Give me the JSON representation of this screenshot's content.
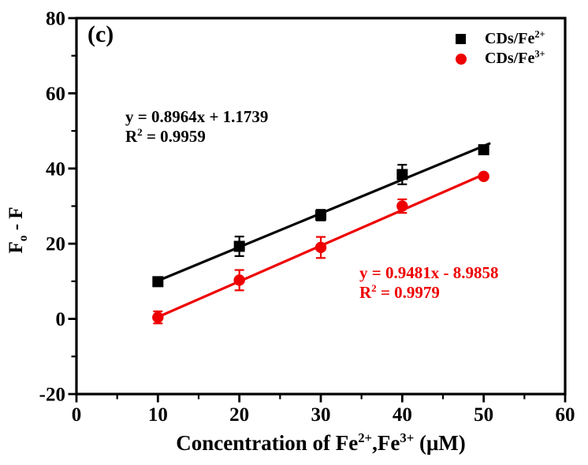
{
  "figure": {
    "panel_label": "(c)",
    "background": "#ffffff"
  },
  "chart_data": {
    "type": "scatter",
    "title": "",
    "grid": false,
    "legend_position": "top-right-inside",
    "x_axis": {
      "title": "Concentration of Fe2+,Fe3+ (μM)",
      "title_parts": [
        {
          "t": "Concentration of Fe"
        },
        {
          "t": "2+",
          "sup": true
        },
        {
          "t": ",Fe"
        },
        {
          "t": "3+",
          "sup": true
        },
        {
          "t": " (μM)"
        }
      ],
      "min": 0,
      "max": 60,
      "major_ticks": [
        0,
        10,
        20,
        30,
        40,
        50,
        60
      ],
      "minor_step": 5
    },
    "y_axis": {
      "title": "Fo - F",
      "title_parts": [
        {
          "t": "F"
        },
        {
          "t": "o",
          "sub": true
        },
        {
          "t": " - F"
        }
      ],
      "min": -20,
      "max": 80,
      "major_ticks": [
        -20,
        0,
        20,
        40,
        60,
        80
      ],
      "minor_step": 10
    },
    "series": [
      {
        "name": "CDs/Fe2+",
        "label_parts": [
          {
            "t": "CDs/Fe"
          },
          {
            "t": "2+",
            "sup": true
          }
        ],
        "marker": "square",
        "color": "#000000",
        "x": [
          10,
          20,
          30,
          40,
          50
        ],
        "y": [
          9.9,
          19.3,
          27.6,
          38.4,
          45.0
        ],
        "y_err": [
          0.8,
          2.6,
          1.4,
          2.6,
          0.5
        ],
        "fit": {
          "slope": 0.8964,
          "intercept": 1.1739,
          "x_range": [
            9.5,
            50.7
          ],
          "equation": "y = 0.8964x + 1.1739",
          "equation_parts": [
            {
              "t": "y = 0.8964x + 1.1739"
            }
          ],
          "r2": "R2 = 0.9959",
          "r2_parts": [
            {
              "t": "R"
            },
            {
              "t": "2",
              "sup": true
            },
            {
              "t": " = 0.9959"
            }
          ]
        }
      },
      {
        "name": "CDs/Fe3+",
        "label_parts": [
          {
            "t": "CDs/Fe"
          },
          {
            "t": "3+",
            "sup": true
          }
        ],
        "marker": "circle",
        "color": "#ee0000",
        "x": [
          10,
          20,
          30,
          40,
          50
        ],
        "y": [
          0.4,
          10.3,
          19.0,
          30.0,
          37.9
        ],
        "y_err": [
          1.6,
          2.7,
          2.8,
          1.8,
          0.5
        ],
        "fit": {
          "slope": 0.9481,
          "intercept": -8.9858,
          "x_range": [
            9.5,
            50.3
          ],
          "equation": "y = 0.9481x - 8.9858",
          "equation_parts": [
            {
              "t": "y = 0.9481x - 8.9858"
            }
          ],
          "r2": "R2 = 0.9979",
          "r2_parts": [
            {
              "t": "R"
            },
            {
              "t": "2",
              "sup": true
            },
            {
              "t": " = 0.9979"
            }
          ]
        }
      }
    ]
  }
}
